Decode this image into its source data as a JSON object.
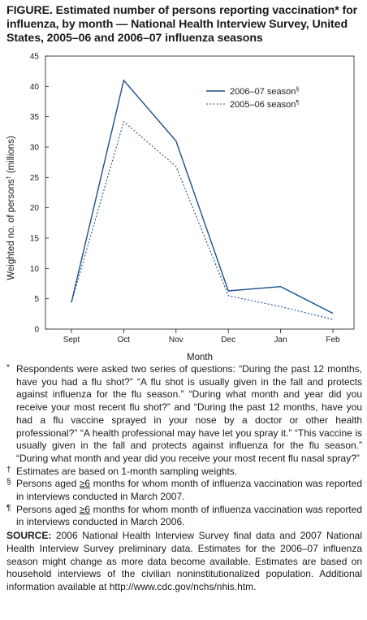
{
  "figure_title": "FIGURE. Estimated number of persons reporting vaccination* for influenza, by month — National Health Interview Survey, United States, 2005–06 and 2006–07 influenza seasons",
  "chart_data": {
    "type": "line",
    "categories": [
      "Sept",
      "Oct",
      "Nov",
      "Dec",
      "Jan",
      "Feb"
    ],
    "series": [
      {
        "name": "2006–07 season§",
        "style": "solid",
        "color": "#1b4f8a",
        "values": [
          4.4,
          41.0,
          31.0,
          6.3,
          7.0,
          2.6
        ]
      },
      {
        "name": "2005–06 season¶",
        "style": "dotted",
        "color": "#1b4f8a",
        "values": [
          4.4,
          34.2,
          26.8,
          5.5,
          3.7,
          1.6
        ]
      }
    ],
    "xlabel": "Month",
    "ylabel": "Weighted no. of persons† (millions)",
    "ylim": [
      0,
      45
    ],
    "yticks": [
      0,
      5,
      10,
      15,
      20,
      25,
      30,
      35,
      40,
      45
    ],
    "grid": false,
    "legend_position": "top-right"
  },
  "footnotes": [
    {
      "mark": "*",
      "text": "Respondents were asked two series of questions: “During the past 12 months, have you had a flu shot?” “A flu shot is usually given in the fall and protects against influenza for the flu season.” “During what month and year did you receive your most recent flu shot?” and “During the past 12 months, have you had a flu vaccine sprayed in your nose by a doctor or other health professional?” “A health professional may have let you spray it.” “This vaccine is usually given in the fall and protects against influenza for the flu season.” “During what month and year did you receive your most recent flu nasal spray?”"
    },
    {
      "mark": "†",
      "text": "Estimates are based on 1-month sampling weights."
    },
    {
      "mark": "§",
      "pre": "Persons aged ",
      "age": "≥6",
      "post": " months for whom month of influenza vaccination was reported in interviews conducted in March 2007."
    },
    {
      "mark": "¶",
      "pre": "Persons aged ",
      "age": "≥6",
      "post": " months for whom month of influenza vaccination was reported in interviews conducted in March 2006."
    }
  ],
  "source": {
    "label": "SOURCE:",
    "text": " 2006 National Health Interview Survey final data and 2007 National Health Interview Survey preliminary data. Estimates for the 2006–07 influenza season might change as more data become available. Estimates are based on household interviews of the civilian noninstitutionalized population. Additional information available at http://www.cdc.gov/nchs/nhis.htm."
  }
}
